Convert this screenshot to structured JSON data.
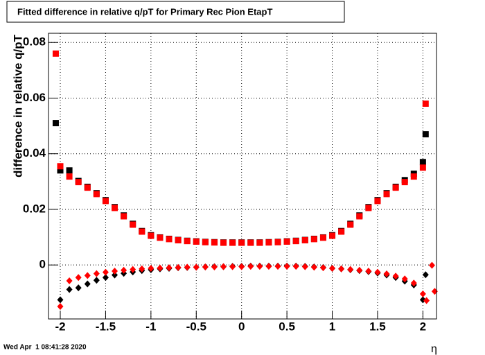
{
  "chart_data": {
    "type": "scatter",
    "title": "Fitted difference in relative q/pT for Primary Rec Pion EtapT",
    "y_label": "difference in relative q/pT",
    "x_label": "η",
    "timestamp": "Wed Apr  1 08:41:28 2020",
    "xlim": [
      -2.13,
      2.15
    ],
    "ylim": [
      -0.0194,
      0.0833
    ],
    "xticks": [
      -2,
      -1.5,
      -1,
      -0.5,
      0,
      0.5,
      1,
      1.5,
      2
    ],
    "yticks": [
      0,
      0.02,
      0.04,
      0.06,
      0.08
    ],
    "grid": true,
    "series": [
      {
        "color": "#000000",
        "marker": "square",
        "x": [
          -2.05,
          -2.0,
          -1.9,
          -1.8,
          -1.7,
          -1.6,
          -1.5,
          -1.4,
          -1.3,
          -1.2,
          -1.1,
          -1.0,
          -0.9,
          -0.8,
          -0.7,
          -0.6,
          -0.5,
          -0.4,
          -0.3,
          -0.2,
          -0.1,
          0,
          0.1,
          0.2,
          0.3,
          0.4,
          0.5,
          0.6,
          0.7,
          0.8,
          0.9,
          1.0,
          1.1,
          1.2,
          1.3,
          1.4,
          1.5,
          1.6,
          1.7,
          1.8,
          1.9,
          2.0,
          2.03
        ],
        "values": [
          0.051,
          0.034,
          0.034,
          0.0302,
          0.0281,
          0.0258,
          0.0233,
          0.0208,
          0.0178,
          0.0148,
          0.0122,
          0.0107,
          0.0099,
          0.0094,
          0.009,
          0.0087,
          0.0085,
          0.0083,
          0.0082,
          0.0081,
          0.0081,
          0.0081,
          0.0081,
          0.0081,
          0.0082,
          0.0083,
          0.0085,
          0.0087,
          0.009,
          0.0094,
          0.0099,
          0.0107,
          0.0122,
          0.0148,
          0.0178,
          0.0208,
          0.0233,
          0.0258,
          0.0281,
          0.0305,
          0.0328,
          0.037,
          0.047
        ]
      },
      {
        "color": "#ff0000",
        "marker": "square",
        "x": [
          -2.05,
          -2.0,
          -1.9,
          -1.8,
          -1.7,
          -1.6,
          -1.5,
          -1.4,
          -1.3,
          -1.2,
          -1.1,
          -1.0,
          -0.9,
          -0.8,
          -0.7,
          -0.6,
          -0.5,
          -0.4,
          -0.3,
          -0.2,
          -0.1,
          0,
          0.1,
          0.2,
          0.3,
          0.4,
          0.5,
          0.6,
          0.7,
          0.8,
          0.9,
          1.0,
          1.1,
          1.2,
          1.3,
          1.4,
          1.5,
          1.6,
          1.7,
          1.8,
          1.9,
          2.0,
          2.03
        ],
        "values": [
          0.076,
          0.0355,
          0.0318,
          0.0298,
          0.0278,
          0.0255,
          0.023,
          0.0205,
          0.0175,
          0.0145,
          0.012,
          0.0105,
          0.0098,
          0.0093,
          0.0089,
          0.0086,
          0.0084,
          0.0082,
          0.0081,
          0.008,
          0.008,
          0.008,
          0.008,
          0.008,
          0.0081,
          0.0082,
          0.0084,
          0.0086,
          0.0089,
          0.0093,
          0.0098,
          0.0105,
          0.012,
          0.0145,
          0.0175,
          0.0205,
          0.023,
          0.0255,
          0.0278,
          0.0298,
          0.0318,
          0.035,
          0.058
        ]
      },
      {
        "color": "#000000",
        "marker": "diamond",
        "x": [
          -2.0,
          -1.9,
          -1.8,
          -1.7,
          -1.6,
          -1.5,
          -1.4,
          -1.3,
          -1.2,
          -1.1,
          -1.0,
          -0.9,
          -0.8,
          -0.7,
          -0.6,
          -0.5,
          -0.4,
          -0.3,
          -0.2,
          -0.1,
          0,
          0.1,
          0.2,
          0.3,
          0.4,
          0.5,
          0.6,
          0.7,
          0.8,
          0.9,
          1.0,
          1.1,
          1.2,
          1.3,
          1.4,
          1.5,
          1.6,
          1.7,
          1.8,
          1.9,
          2.0,
          2.03
        ],
        "values": [
          -0.0125,
          -0.0088,
          -0.0082,
          -0.0068,
          -0.0055,
          -0.0045,
          -0.0036,
          -0.003,
          -0.0025,
          -0.002,
          -0.0017,
          -0.0014,
          -0.0012,
          -0.001,
          -0.0009,
          -0.0008,
          -0.0007,
          -0.0006,
          -0.0006,
          -0.0005,
          -0.0005,
          -0.0004,
          -0.0004,
          -0.0004,
          -0.0004,
          -0.0004,
          -0.0004,
          -0.0005,
          -0.0007,
          -0.0009,
          -0.0012,
          -0.0014,
          -0.0017,
          -0.002,
          -0.0024,
          -0.0029,
          -0.0036,
          -0.0045,
          -0.0058,
          -0.0072,
          -0.0125,
          -0.0035
        ]
      },
      {
        "color": "#ff0000",
        "marker": "diamond",
        "x": [
          -2.0,
          -1.9,
          -1.8,
          -1.7,
          -1.6,
          -1.5,
          -1.4,
          -1.3,
          -1.2,
          -1.1,
          -1.0,
          -0.9,
          -0.8,
          -0.7,
          -0.6,
          -0.5,
          -0.4,
          -0.3,
          -0.2,
          -0.1,
          0,
          0.1,
          0.2,
          0.3,
          0.4,
          0.5,
          0.6,
          0.7,
          0.8,
          0.9,
          1.0,
          1.1,
          1.2,
          1.3,
          1.4,
          1.5,
          1.6,
          1.7,
          1.8,
          1.9,
          2.0,
          2.04,
          2.1,
          2.13
        ],
        "values": [
          -0.0149,
          -0.0057,
          -0.0045,
          -0.0038,
          -0.0031,
          -0.0026,
          -0.0022,
          -0.0019,
          -0.0016,
          -0.0014,
          -0.0012,
          -0.0011,
          -0.001,
          -0.0009,
          -0.0008,
          -0.0008,
          -0.0007,
          -0.0007,
          -0.0006,
          -0.0006,
          -0.0006,
          -0.0005,
          -0.0005,
          -0.0005,
          -0.0005,
          -0.0005,
          -0.0005,
          -0.0006,
          -0.0008,
          -0.001,
          -0.0012,
          -0.0014,
          -0.0016,
          -0.0019,
          -0.0022,
          -0.0026,
          -0.0032,
          -0.004,
          -0.005,
          -0.0065,
          -0.0104,
          -0.0128,
          -0.0001,
          -0.0095
        ]
      }
    ]
  }
}
